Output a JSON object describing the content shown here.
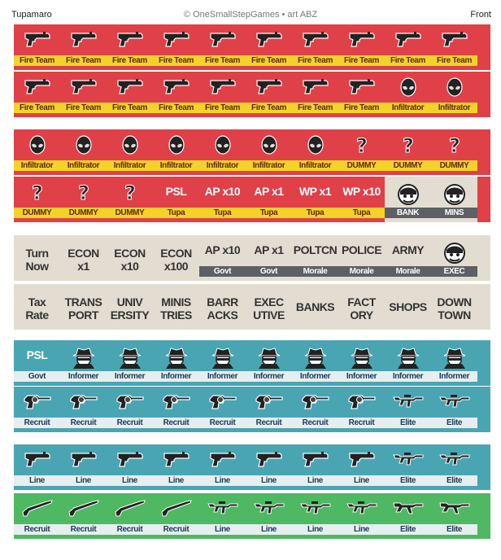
{
  "header": {
    "left": "Tupamaro",
    "center": "© OneSmallStepGames • art ABZ",
    "right": "Front"
  },
  "sheet": {
    "rows": [
      {
        "bg": "red",
        "cells": [
          {
            "icon": "pistol-icon",
            "label": "Fire Team"
          },
          {
            "icon": "pistol-icon",
            "label": "Fire Team"
          },
          {
            "icon": "pistol-icon",
            "label": "Fire Team"
          },
          {
            "icon": "pistol-icon",
            "label": "Fire Team"
          },
          {
            "icon": "pistol-icon",
            "label": "Fire Team"
          },
          {
            "icon": "pistol-icon",
            "label": "Fire Team"
          },
          {
            "icon": "pistol-icon",
            "label": "Fire Team"
          },
          {
            "icon": "pistol-icon",
            "label": "Fire Team"
          },
          {
            "icon": "pistol-icon",
            "label": "Fire Team"
          },
          {
            "icon": "pistol-icon",
            "label": "Fire Team"
          }
        ]
      },
      {
        "bg": "red",
        "cells": [
          {
            "icon": "pistol-icon",
            "label": "Fire Team"
          },
          {
            "icon": "pistol-icon",
            "label": "Fire Team"
          },
          {
            "icon": "pistol-icon",
            "label": "Fire Team"
          },
          {
            "icon": "pistol-icon",
            "label": "Fire Team"
          },
          {
            "icon": "pistol-icon",
            "label": "Fire Team"
          },
          {
            "icon": "pistol-icon",
            "label": "Fire Team"
          },
          {
            "icon": "pistol-icon",
            "label": "Fire Team"
          },
          {
            "icon": "pistol-icon",
            "label": "Fire Team"
          },
          {
            "icon": "alien-head-icon",
            "label": "Infiltrator"
          },
          {
            "icon": "alien-head-icon",
            "label": "Infiltrator"
          }
        ]
      },
      {
        "bg": "red",
        "cells": [
          {
            "icon": "alien-head-icon",
            "label": "Infiltrator"
          },
          {
            "icon": "alien-head-icon",
            "label": "Infiltrator"
          },
          {
            "icon": "alien-head-icon",
            "label": "Infiltrator"
          },
          {
            "icon": "alien-head-icon",
            "label": "Infiltrator"
          },
          {
            "icon": "alien-head-icon",
            "label": "Infiltrator"
          },
          {
            "icon": "alien-head-icon",
            "label": "Infiltrator"
          },
          {
            "icon": "alien-head-icon",
            "label": "Infiltrator"
          },
          {
            "icon": "question-mark-icon",
            "label": "DUMMY"
          },
          {
            "icon": "question-mark-icon",
            "label": "DUMMY"
          },
          {
            "icon": "question-mark-icon",
            "label": "DUMMY"
          }
        ]
      },
      {
        "bg": "red",
        "cells": [
          {
            "icon": "question-mark-icon",
            "label": "DUMMY"
          },
          {
            "icon": "question-mark-icon",
            "label": "DUMMY"
          },
          {
            "icon": "question-mark-icon",
            "label": "DUMMY"
          },
          {
            "text": "PSL",
            "label": "Tupa"
          },
          {
            "text": "AP x10",
            "label": "Tupa"
          },
          {
            "text": "AP x1",
            "label": "Tupa"
          },
          {
            "text": "WP x1",
            "label": "Tupa"
          },
          {
            "text": "WP x10",
            "label": "Tupa"
          },
          {
            "icon": "masked-face-icon",
            "label": "BANK",
            "tan": true
          },
          {
            "icon": "masked-face-icon",
            "label": "MINS",
            "tan": true
          }
        ]
      },
      {
        "bg": "tan",
        "cells": [
          {
            "text": "Turn\nNow"
          },
          {
            "text": "ECON\nx1"
          },
          {
            "text": "ECON\nx10"
          },
          {
            "text": "ECON\nx100"
          },
          {
            "text": "AP x10",
            "label": "Govt"
          },
          {
            "text": "AP x1",
            "label": "Govt"
          },
          {
            "text": "POLTCN",
            "label": "Morale"
          },
          {
            "text": "POLICE",
            "label": "Morale"
          },
          {
            "text": "ARMY",
            "label": "Morale"
          },
          {
            "icon": "masked-face-icon",
            "label": "EXEC"
          }
        ]
      },
      {
        "bg": "tan",
        "cells": [
          {
            "text": "Tax\nRate"
          },
          {
            "text": "TRANS\nPORT"
          },
          {
            "text": "UNIV\nERSITY"
          },
          {
            "text": "MINIS\nTRIES"
          },
          {
            "text": "BARR\nACKS"
          },
          {
            "text": "EXEC\nUTIVE"
          },
          {
            "text": "BANKS"
          },
          {
            "text": "FACT\nORY"
          },
          {
            "text": "SHOPS"
          },
          {
            "text": "DOWN\nTOWN"
          }
        ]
      },
      {
        "bg": "teal",
        "cells": [
          {
            "text": "PSL",
            "label": "Govt"
          },
          {
            "icon": "fedora-spy-icon",
            "label": "Informer"
          },
          {
            "icon": "fedora-spy-icon",
            "label": "Informer"
          },
          {
            "icon": "fedora-spy-icon",
            "label": "Informer"
          },
          {
            "icon": "fedora-spy-icon",
            "label": "Informer"
          },
          {
            "icon": "fedora-spy-icon",
            "label": "Informer"
          },
          {
            "icon": "fedora-spy-icon",
            "label": "Informer"
          },
          {
            "icon": "fedora-spy-icon",
            "label": "Informer"
          },
          {
            "icon": "fedora-spy-icon",
            "label": "Informer"
          },
          {
            "icon": "fedora-spy-icon",
            "label": "Informer"
          }
        ]
      },
      {
        "bg": "teal",
        "cells": [
          {
            "icon": "revolver-icon",
            "label": "Recruit"
          },
          {
            "icon": "revolver-icon",
            "label": "Recruit"
          },
          {
            "icon": "revolver-icon",
            "label": "Recruit"
          },
          {
            "icon": "revolver-icon",
            "label": "Recruit"
          },
          {
            "icon": "revolver-icon",
            "label": "Recruit"
          },
          {
            "icon": "revolver-icon",
            "label": "Recruit"
          },
          {
            "icon": "revolver-icon",
            "label": "Recruit"
          },
          {
            "icon": "revolver-icon",
            "label": "Recruit"
          },
          {
            "icon": "assault-rifle-icon",
            "label": "Elite"
          },
          {
            "icon": "assault-rifle-icon",
            "label": "Elite"
          }
        ]
      },
      {
        "bg": "teal",
        "cells": [
          {
            "icon": "pistol-icon",
            "label": "Line"
          },
          {
            "icon": "pistol-icon",
            "label": "Line"
          },
          {
            "icon": "pistol-icon",
            "label": "Line"
          },
          {
            "icon": "pistol-icon",
            "label": "Line"
          },
          {
            "icon": "pistol-icon",
            "label": "Line"
          },
          {
            "icon": "pistol-icon",
            "label": "Line"
          },
          {
            "icon": "pistol-icon",
            "label": "Line"
          },
          {
            "icon": "pistol-icon",
            "label": "Line"
          },
          {
            "icon": "assault-rifle-icon",
            "label": "Elite"
          },
          {
            "icon": "assault-rifle-icon",
            "label": "Elite"
          }
        ]
      },
      {
        "bg": "green",
        "cells": [
          {
            "icon": "bolt-rifle-icon",
            "label": "Recruit"
          },
          {
            "icon": "bolt-rifle-icon",
            "label": "Recruit"
          },
          {
            "icon": "bolt-rifle-icon",
            "label": "Recruit"
          },
          {
            "icon": "bolt-rifle-icon",
            "label": "Recruit"
          },
          {
            "icon": "assault-rifle-icon",
            "label": "Line"
          },
          {
            "icon": "assault-rifle-icon",
            "label": "Line"
          },
          {
            "icon": "assault-rifle-icon",
            "label": "Line"
          },
          {
            "icon": "assault-rifle-icon",
            "label": "Line"
          },
          {
            "icon": "ak-rifle-icon",
            "label": "Elite"
          },
          {
            "icon": "ak-rifle-icon",
            "label": "Elite"
          }
        ]
      }
    ]
  }
}
